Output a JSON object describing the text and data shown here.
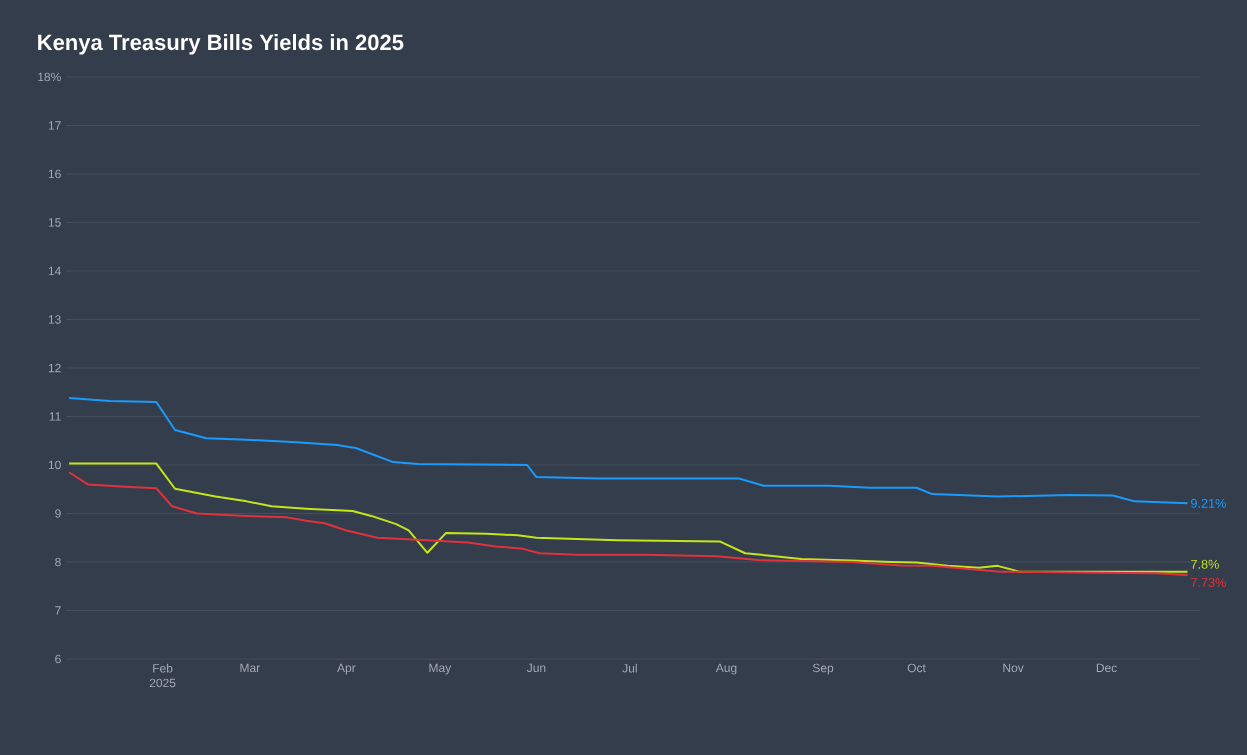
{
  "chart_data": {
    "type": "line",
    "title": "Kenya Treasury Bills Yields in 2025",
    "xlim": [
      "2025-01-01",
      "2025-12-31"
    ],
    "xticks": [
      {
        "value": "2025-02-01",
        "label": "Feb 2025"
      },
      {
        "value": "2025-03-01",
        "label": "Mar"
      },
      {
        "value": "2025-04-01",
        "label": "Apr"
      },
      {
        "value": "2025-05-01",
        "label": "May"
      },
      {
        "value": "2025-06-01",
        "label": "Jun"
      },
      {
        "value": "2025-07-01",
        "label": "Jul"
      },
      {
        "value": "2025-08-01",
        "label": "Aug"
      },
      {
        "value": "2025-09-01",
        "label": "Sep"
      },
      {
        "value": "2025-10-01",
        "label": "Oct"
      },
      {
        "value": "2025-11-01",
        "label": "Nov"
      },
      {
        "value": "2025-12-01",
        "label": "Dec"
      }
    ],
    "ylim": [
      6,
      18
    ],
    "yticks": [
      6,
      7,
      8,
      9,
      10,
      11,
      12,
      13,
      14,
      15,
      16,
      17,
      {
        "value": 18,
        "label": "18%"
      }
    ],
    "grid": "y",
    "line_style": "solid",
    "marker": "none",
    "series": [
      {
        "color": "#1a9bfc",
        "x": [
          "2025-01-02",
          "2025-01-15",
          "2025-01-30",
          "2025-02-05",
          "2025-02-15",
          "2025-02-28",
          "2025-03-16",
          "2025-03-29",
          "2025-04-04",
          "2025-04-16",
          "2025-04-24",
          "2025-05-29",
          "2025-06-01",
          "2025-06-21",
          "2025-08-05",
          "2025-08-13",
          "2025-09-03",
          "2025-09-16",
          "2025-10-01",
          "2025-10-06",
          "2025-10-27",
          "2025-11-19",
          "2025-12-03",
          "2025-12-10",
          "2025-12-27"
        ],
        "values": [
          11.38,
          11.32,
          11.3,
          10.72,
          10.55,
          10.52,
          10.47,
          10.41,
          10.35,
          10.06,
          10.02,
          10.0,
          9.75,
          9.72,
          9.72,
          9.57,
          9.57,
          9.53,
          9.53,
          9.4,
          9.35,
          9.38,
          9.37,
          9.25,
          9.21
        ],
        "value_labels": [
          null,
          null,
          null,
          null,
          null,
          null,
          null,
          null,
          null,
          null,
          null,
          null,
          null,
          null,
          null,
          null,
          null,
          null,
          null,
          null,
          null,
          null,
          null,
          null,
          "9.21%"
        ]
      },
      {
        "color": "#c5e51b",
        "x": [
          "2025-01-02",
          "2025-01-30",
          "2025-02-05",
          "2025-02-18",
          "2025-02-28",
          "2025-03-08",
          "2025-03-19",
          "2025-04-03",
          "2025-04-09",
          "2025-04-17",
          "2025-04-21",
          "2025-04-27",
          "2025-05-03",
          "2025-05-16",
          "2025-05-26",
          "2025-06-01",
          "2025-06-27",
          "2025-07-23",
          "2025-07-30",
          "2025-08-07",
          "2025-08-15",
          "2025-08-25",
          "2025-09-10",
          "2025-09-23",
          "2025-10-01",
          "2025-10-11",
          "2025-10-21",
          "2025-10-27",
          "2025-11-03",
          "2025-12-27"
        ],
        "values": [
          10.03,
          10.03,
          9.51,
          9.35,
          9.25,
          9.15,
          9.1,
          9.05,
          8.95,
          8.78,
          8.65,
          8.19,
          8.6,
          8.58,
          8.55,
          8.5,
          8.45,
          8.43,
          8.42,
          8.18,
          8.13,
          8.06,
          8.03,
          8.0,
          7.99,
          7.92,
          7.88,
          7.92,
          7.8,
          7.8
        ],
        "value_labels": [
          null,
          null,
          null,
          null,
          null,
          null,
          null,
          null,
          null,
          null,
          null,
          null,
          null,
          null,
          null,
          null,
          null,
          null,
          null,
          null,
          null,
          null,
          null,
          null,
          null,
          null,
          null,
          null,
          null,
          "7.8%"
        ]
      },
      {
        "color": "#e0323c",
        "x": [
          "2025-01-02",
          "2025-01-08",
          "2025-01-20",
          "2025-01-30",
          "2025-02-04",
          "2025-02-12",
          "2025-02-28",
          "2025-03-13",
          "2025-03-19",
          "2025-03-25",
          "2025-04-01",
          "2025-04-11",
          "2025-04-27",
          "2025-05-10",
          "2025-05-19",
          "2025-05-27",
          "2025-06-02",
          "2025-06-14",
          "2025-07-06",
          "2025-07-29",
          "2025-08-11",
          "2025-09-10",
          "2025-09-26",
          "2025-10-06",
          "2025-10-15",
          "2025-10-28",
          "2025-11-28",
          "2025-12-17",
          "2025-12-27"
        ],
        "values": [
          9.85,
          9.6,
          9.55,
          9.52,
          9.15,
          9.0,
          8.95,
          8.92,
          8.85,
          8.8,
          8.65,
          8.5,
          8.45,
          8.4,
          8.32,
          8.28,
          8.18,
          8.15,
          8.15,
          8.12,
          8.04,
          8.0,
          7.93,
          7.92,
          7.87,
          7.8,
          7.78,
          7.77,
          7.73
        ],
        "value_labels": [
          null,
          null,
          null,
          null,
          null,
          null,
          null,
          null,
          null,
          null,
          null,
          null,
          null,
          null,
          null,
          null,
          null,
          null,
          null,
          null,
          null,
          null,
          null,
          null,
          null,
          null,
          null,
          null,
          "7.73%"
        ]
      }
    ]
  }
}
